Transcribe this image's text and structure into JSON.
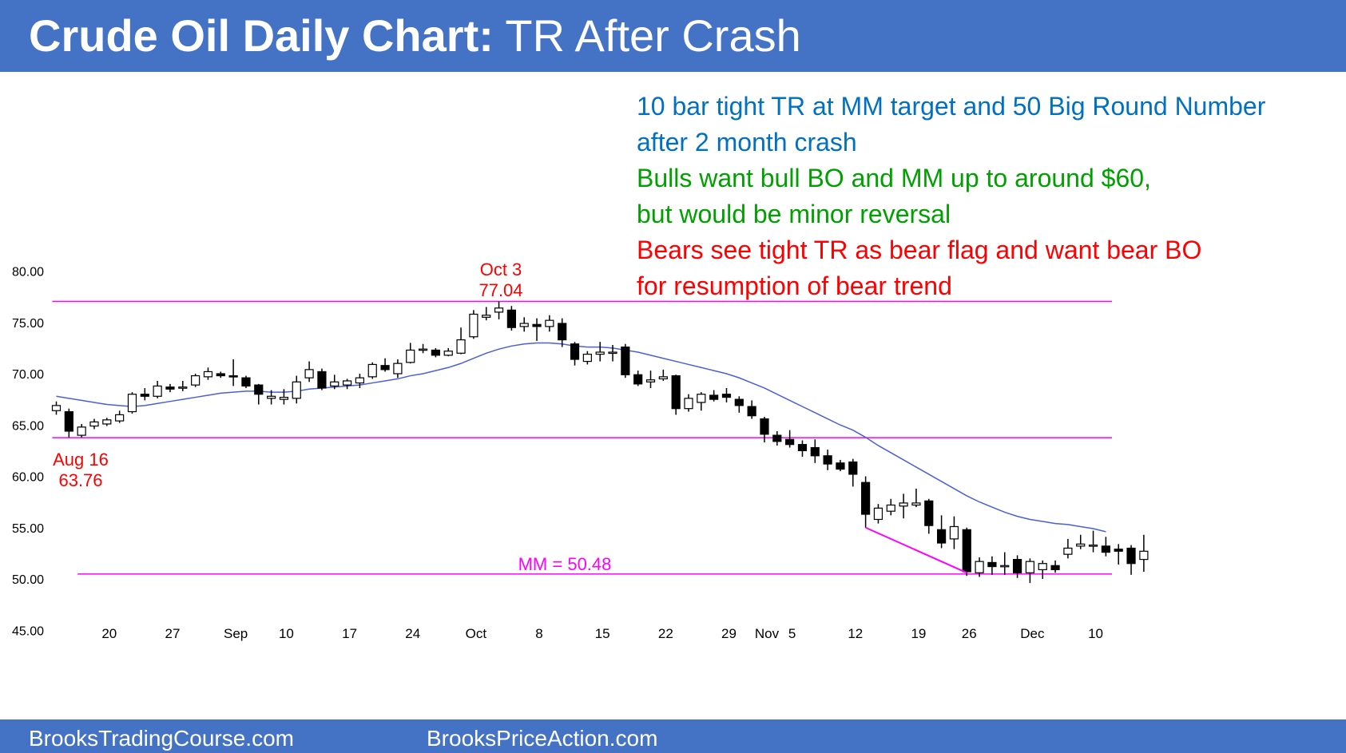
{
  "header": {
    "title_bold": "Crude Oil Daily Chart:",
    "title_rest": " TR After Crash",
    "bg_color": "#4472c4"
  },
  "annotations": [
    {
      "text": "10 bar tight TR at MM target and 50 Big Round Number",
      "color": "#0070c0"
    },
    {
      "text": "after 2 month crash",
      "color": "#0070c0"
    },
    {
      "text": "Bulls want bull BO and MM up to around $60,",
      "color": "#00a000"
    },
    {
      "text": "but would be minor reversal",
      "color": "#00a000"
    },
    {
      "text": "Bears see tight TR as bear flag and want bear BO",
      "color": "#ff0000"
    },
    {
      "text": "for resumption of bear trend",
      "color": "#ff0000"
    }
  ],
  "footer": {
    "left": "BrooksTradingCourse.com",
    "right": "BrooksPriceAction.com"
  },
  "chart_data": {
    "type": "candlestick",
    "ylim": [
      41,
      83
    ],
    "yticks": [
      "80.00",
      "75.00",
      "70.00",
      "65.00",
      "60.00",
      "55.00",
      "50.00",
      "45.00"
    ],
    "ytick_values": [
      80,
      75,
      70,
      65,
      60,
      55,
      50,
      45
    ],
    "xticks": [
      {
        "label": "20",
        "index": 4
      },
      {
        "label": "27",
        "index": 9
      },
      {
        "label": "Sep",
        "index": 14
      },
      {
        "label": "10",
        "index": 18
      },
      {
        "label": "17",
        "index": 23
      },
      {
        "label": "24",
        "index": 28
      },
      {
        "label": "Oct",
        "index": 33
      },
      {
        "label": "8",
        "index": 38
      },
      {
        "label": "15",
        "index": 43
      },
      {
        "label": "22",
        "index": 48
      },
      {
        "label": "29",
        "index": 53
      },
      {
        "label": "Nov",
        "index": 56
      },
      {
        "label": "5",
        "index": 58
      },
      {
        "label": "12",
        "index": 63
      },
      {
        "label": "19",
        "index": 68
      },
      {
        "label": "26",
        "index": 72
      },
      {
        "label": "Dec",
        "index": 77
      },
      {
        "label": "10",
        "index": 82
      }
    ],
    "candles": [
      [
        66.4,
        67.3,
        66.0,
        66.9
      ],
      [
        66.3,
        66.6,
        63.8,
        64.4
      ],
      [
        64.0,
        65.1,
        63.8,
        64.8
      ],
      [
        64.9,
        65.6,
        64.6,
        65.3
      ],
      [
        65.1,
        65.7,
        64.9,
        65.5
      ],
      [
        65.4,
        66.4,
        65.2,
        66.0
      ],
      [
        66.3,
        68.2,
        66.1,
        68.0
      ],
      [
        68.0,
        68.6,
        67.4,
        67.8
      ],
      [
        67.8,
        69.3,
        67.6,
        68.8
      ],
      [
        68.7,
        69.0,
        68.2,
        68.5
      ],
      [
        68.6,
        69.3,
        68.3,
        68.7
      ],
      [
        68.9,
        70.0,
        68.7,
        69.8
      ],
      [
        69.7,
        70.6,
        69.4,
        70.2
      ],
      [
        70.0,
        70.2,
        69.6,
        69.8
      ],
      [
        69.8,
        71.4,
        68.8,
        69.7
      ],
      [
        69.6,
        69.8,
        68.6,
        68.8
      ],
      [
        68.9,
        69.0,
        67.0,
        68.0
      ],
      [
        67.6,
        68.4,
        67.0,
        67.8
      ],
      [
        67.5,
        68.5,
        67.0,
        67.7
      ],
      [
        67.6,
        69.8,
        67.1,
        69.2
      ],
      [
        69.6,
        71.2,
        69.2,
        70.4
      ],
      [
        70.2,
        70.5,
        68.4,
        68.6
      ],
      [
        68.8,
        69.9,
        68.5,
        69.2
      ],
      [
        68.9,
        69.5,
        68.5,
        69.3
      ],
      [
        69.1,
        70.0,
        68.6,
        69.6
      ],
      [
        69.7,
        71.1,
        69.5,
        70.9
      ],
      [
        70.8,
        71.5,
        70.2,
        70.4
      ],
      [
        70.0,
        71.4,
        69.6,
        71.0
      ],
      [
        71.1,
        73.0,
        71.0,
        72.3
      ],
      [
        72.4,
        72.9,
        72.0,
        72.4
      ],
      [
        72.3,
        72.5,
        71.6,
        71.8
      ],
      [
        71.8,
        72.5,
        71.7,
        72.2
      ],
      [
        72.0,
        74.5,
        71.9,
        73.3
      ],
      [
        73.6,
        76.2,
        73.4,
        75.8
      ],
      [
        75.5,
        76.5,
        75.2,
        75.7
      ],
      [
        76.0,
        77.04,
        75.3,
        76.4
      ],
      [
        76.2,
        76.6,
        74.2,
        74.5
      ],
      [
        74.6,
        75.5,
        74.1,
        74.9
      ],
      [
        74.8,
        75.4,
        73.2,
        74.6
      ],
      [
        74.6,
        75.7,
        74.1,
        75.2
      ],
      [
        74.9,
        75.4,
        72.6,
        73.3
      ],
      [
        72.9,
        73.1,
        70.8,
        71.4
      ],
      [
        71.2,
        72.2,
        70.9,
        71.9
      ],
      [
        71.9,
        73.1,
        71.2,
        72.1
      ],
      [
        72.0,
        72.8,
        71.2,
        72.1
      ],
      [
        72.6,
        72.9,
        69.6,
        69.9
      ],
      [
        69.9,
        70.3,
        68.8,
        69.0
      ],
      [
        69.2,
        70.3,
        68.6,
        69.4
      ],
      [
        69.5,
        70.4,
        69.3,
        69.7
      ],
      [
        69.8,
        69.9,
        66.0,
        66.6
      ],
      [
        66.6,
        68.0,
        66.3,
        67.6
      ],
      [
        67.2,
        68.2,
        66.4,
        68.0
      ],
      [
        67.9,
        68.4,
        67.3,
        67.5
      ],
      [
        68.0,
        68.6,
        67.2,
        67.7
      ],
      [
        67.5,
        67.8,
        66.2,
        66.9
      ],
      [
        66.8,
        67.4,
        65.6,
        65.9
      ],
      [
        65.6,
        65.8,
        63.3,
        64.1
      ],
      [
        64.0,
        64.4,
        63.0,
        63.4
      ],
      [
        63.6,
        64.5,
        62.8,
        63.1
      ],
      [
        63.1,
        63.5,
        61.9,
        62.5
      ],
      [
        62.8,
        63.6,
        61.3,
        62.0
      ],
      [
        62.0,
        62.6,
        60.6,
        61.2
      ],
      [
        61.3,
        61.6,
        60.5,
        60.7
      ],
      [
        61.4,
        61.7,
        59.0,
        60.2
      ],
      [
        59.4,
        60.0,
        55.0,
        56.3
      ],
      [
        55.8,
        57.3,
        55.4,
        56.9
      ],
      [
        56.6,
        57.8,
        56.2,
        57.2
      ],
      [
        57.1,
        58.3,
        55.9,
        57.4
      ],
      [
        57.2,
        58.8,
        57.0,
        57.4
      ],
      [
        57.6,
        57.8,
        54.4,
        55.2
      ],
      [
        54.8,
        56.2,
        53.0,
        53.5
      ],
      [
        53.9,
        56.1,
        52.9,
        55.1
      ],
      [
        54.8,
        55.0,
        50.3,
        50.7
      ],
      [
        50.6,
        52.1,
        50.2,
        51.7
      ],
      [
        51.6,
        52.2,
        50.4,
        51.2
      ],
      [
        51.3,
        52.6,
        50.4,
        51.3
      ],
      [
        51.9,
        52.3,
        50.1,
        50.6
      ],
      [
        50.6,
        52.0,
        49.6,
        51.7
      ],
      [
        50.9,
        51.8,
        50.0,
        51.5
      ],
      [
        51.3,
        51.8,
        50.6,
        50.9
      ],
      [
        52.4,
        53.9,
        52.0,
        53.0
      ],
      [
        53.2,
        54.3,
        52.9,
        53.4
      ],
      [
        53.2,
        54.7,
        52.6,
        53.3
      ],
      [
        53.2,
        54.1,
        52.2,
        52.6
      ],
      [
        52.9,
        53.4,
        51.4,
        52.7
      ],
      [
        53.0,
        53.3,
        50.4,
        51.5
      ],
      [
        51.9,
        54.3,
        50.7,
        52.7
      ]
    ],
    "moving_average": [
      67.8,
      67.6,
      67.4,
      67.2,
      67.0,
      66.9,
      66.8,
      66.9,
      67.1,
      67.3,
      67.5,
      67.7,
      67.9,
      68.1,
      68.2,
      68.3,
      68.3,
      68.2,
      68.2,
      68.3,
      68.5,
      68.6,
      68.7,
      68.8,
      68.9,
      69.1,
      69.3,
      69.5,
      69.8,
      70.0,
      70.3,
      70.6,
      71.0,
      71.5,
      72.0,
      72.4,
      72.7,
      72.9,
      73.0,
      73.0,
      72.9,
      72.7,
      72.6,
      72.6,
      72.5,
      72.3,
      72.1,
      71.8,
      71.5,
      71.2,
      70.9,
      70.6,
      70.3,
      70.0,
      69.6,
      69.1,
      68.6,
      68.0,
      67.4,
      66.8,
      66.2,
      65.6,
      65.0,
      64.5,
      63.8,
      63.0,
      62.3,
      61.6,
      60.9,
      60.2,
      59.5,
      58.8,
      58.1,
      57.5,
      57.0,
      56.5,
      56.1,
      55.8,
      55.6,
      55.4,
      55.3,
      55.1,
      54.9,
      54.6
    ],
    "hlines": [
      {
        "value": 77.04,
        "label": "",
        "from_index": 0
      },
      {
        "value": 63.76,
        "label": "",
        "from_index": 0
      },
      {
        "value": 50.48,
        "label": "MM = 50.48",
        "from_index": 2
      }
    ],
    "point_labels": [
      {
        "line1": "Oct 3",
        "line2": "77.04",
        "index": 35,
        "value": 77.04,
        "color": "#ff0000"
      },
      {
        "line1": "Aug 16",
        "line2": "63.76",
        "index": 1,
        "value": 63.76,
        "color": "#ff0000"
      }
    ],
    "diagonal_line": {
      "from_index": 64,
      "from_value": 55.0,
      "to_index": 72,
      "to_value": 50.6,
      "color": "#ff00ff"
    },
    "colors": {
      "bear_body": "#000000",
      "bull_body": "#ffffff",
      "line": "#ff00ff",
      "ma": "#4a5fd8",
      "tick_text": "#000000"
    }
  }
}
